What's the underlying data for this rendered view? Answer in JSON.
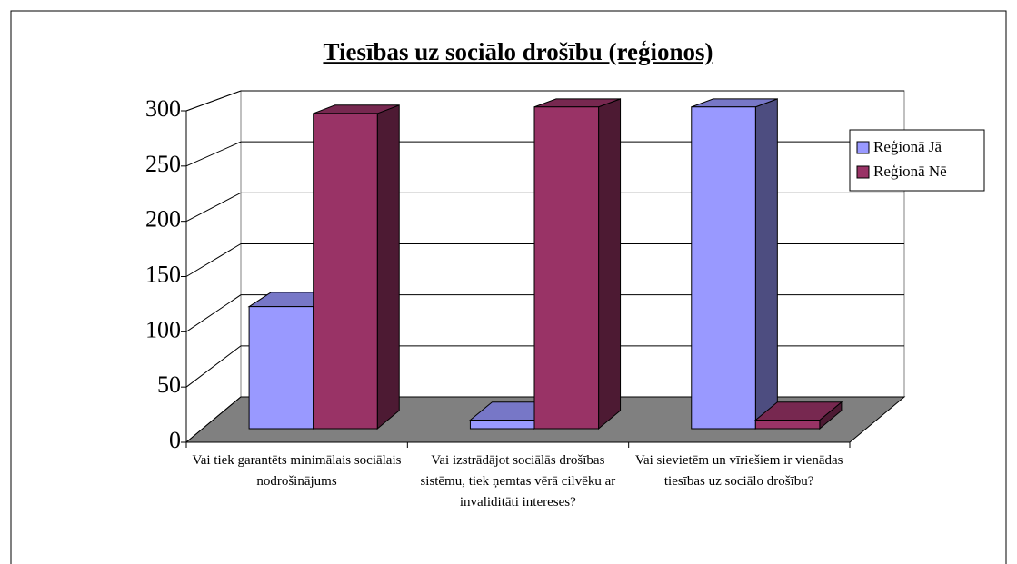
{
  "chart_data": {
    "type": "bar3d",
    "title": "Tiesības uz sociālo drošību (reģionos)",
    "categories": [
      "Vai tiek garantēts minimālais sociālais nodrošinājums",
      "Vai izstrādājot sociālās drošības sistēmu, tiek ņemtas vērā cilvēku ar invaliditāti intereses?",
      "Vai sievietēm un vīriešiem ir vienādas tiesības uz sociālo drošību?"
    ],
    "series": [
      {
        "name": "Reģionā Jā",
        "color": "#9999ff",
        "values": [
          113,
          8,
          298
        ]
      },
      {
        "name": "Reģionā Nē",
        "color": "#993366",
        "values": [
          292,
          298,
          8
        ]
      }
    ],
    "ylim": [
      0,
      300
    ],
    "yticks": [
      0,
      50,
      100,
      150,
      200,
      250,
      300
    ],
    "grid": true,
    "legend": "right"
  }
}
